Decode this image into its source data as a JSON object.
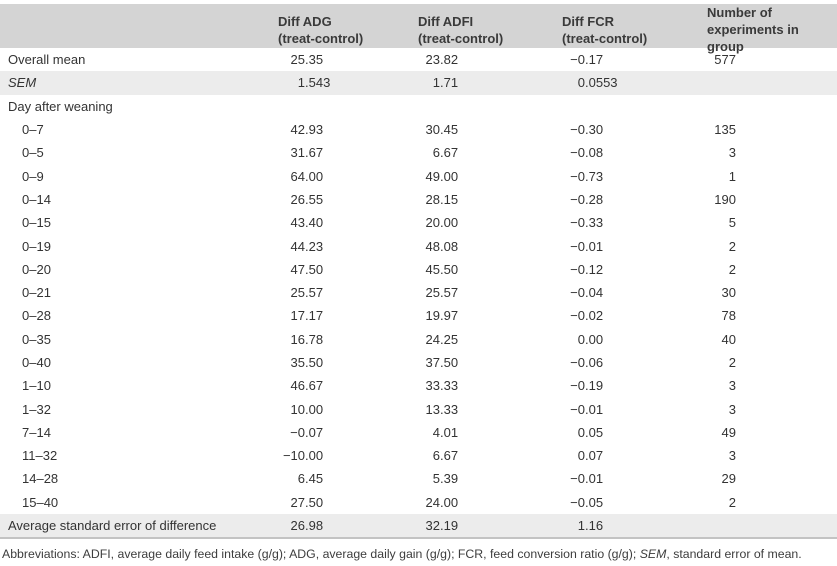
{
  "table": {
    "columns": [
      {
        "label": "",
        "sub": ""
      },
      {
        "label": "Diff ADG",
        "sub": "(treat-control)"
      },
      {
        "label": "Diff ADFI",
        "sub": "(treat-control)"
      },
      {
        "label": "Diff FCR",
        "sub": "(treat-control)"
      },
      {
        "label": "Number of",
        "sub": "experiments in group"
      }
    ],
    "rows": [
      {
        "label": "Overall mean",
        "adg": "25.35",
        "adfi": "23.82",
        "fcr": "−0.17",
        "n": "577"
      },
      {
        "label": "SEM",
        "italic": true,
        "shade": true,
        "adg": "1.543",
        "adfi": "1.71",
        "fcr": "0.0553",
        "n": ""
      },
      {
        "label": "Day after weaning",
        "section": true,
        "adg": "",
        "adfi": "",
        "fcr": "",
        "n": ""
      },
      {
        "label": "0–7",
        "indent": true,
        "adg": "42.93",
        "adfi": "30.45",
        "fcr": "−0.30",
        "n": "135"
      },
      {
        "label": "0–5",
        "indent": true,
        "adg": "31.67",
        "adfi": "6.67",
        "fcr": "−0.08",
        "n": "3"
      },
      {
        "label": "0–9",
        "indent": true,
        "adg": "64.00",
        "adfi": "49.00",
        "fcr": "−0.73",
        "n": "1"
      },
      {
        "label": "0–14",
        "indent": true,
        "adg": "26.55",
        "adfi": "28.15",
        "fcr": "−0.28",
        "n": "190"
      },
      {
        "label": "0–15",
        "indent": true,
        "adg": "43.40",
        "adfi": "20.00",
        "fcr": "−0.33",
        "n": "5"
      },
      {
        "label": "0–19",
        "indent": true,
        "adg": "44.23",
        "adfi": "48.08",
        "fcr": "−0.01",
        "n": "2"
      },
      {
        "label": "0–20",
        "indent": true,
        "adg": "47.50",
        "adfi": "45.50",
        "fcr": "−0.12",
        "n": "2"
      },
      {
        "label": "0–21",
        "indent": true,
        "adg": "25.57",
        "adfi": "25.57",
        "fcr": "−0.04",
        "n": "30"
      },
      {
        "label": "0–28",
        "indent": true,
        "adg": "17.17",
        "adfi": "19.97",
        "fcr": "−0.02",
        "n": "78"
      },
      {
        "label": "0–35",
        "indent": true,
        "adg": "16.78",
        "adfi": "24.25",
        "fcr": "0.00",
        "n": "40"
      },
      {
        "label": "0–40",
        "indent": true,
        "adg": "35.50",
        "adfi": "37.50",
        "fcr": "−0.06",
        "n": "2"
      },
      {
        "label": "1–10",
        "indent": true,
        "adg": "46.67",
        "adfi": "33.33",
        "fcr": "−0.19",
        "n": "3"
      },
      {
        "label": "1–32",
        "indent": true,
        "adg": "10.00",
        "adfi": "13.33",
        "fcr": "−0.01",
        "n": "3"
      },
      {
        "label": "7–14",
        "indent": true,
        "adg": "−0.07",
        "adfi": "4.01",
        "fcr": "0.05",
        "n": "49"
      },
      {
        "label": "11–32",
        "indent": true,
        "adg": "−10.00",
        "adfi": "6.67",
        "fcr": "0.07",
        "n": "3"
      },
      {
        "label": "14–28",
        "indent": true,
        "adg": "6.45",
        "adfi": "5.39",
        "fcr": "−0.01",
        "n": "29"
      },
      {
        "label": "15–40",
        "indent": true,
        "adg": "27.50",
        "adfi": "24.00",
        "fcr": "−0.05",
        "n": "2"
      },
      {
        "label": "Average standard error of difference",
        "shade": true,
        "adg": "26.98",
        "adfi": "32.19",
        "fcr": "1.16",
        "n": ""
      }
    ]
  },
  "footnote": {
    "before": "Abbreviations: ADFI, average daily feed intake (g/g); ADG, average daily gain (g/g); FCR, feed conversion ratio (g/g); ",
    "sem": "SEM",
    "after": ", standard error of mean."
  }
}
